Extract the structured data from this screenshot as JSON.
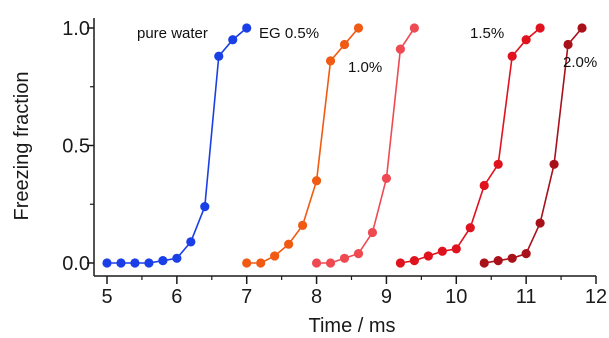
{
  "chart_data": {
    "type": "line",
    "title": "",
    "xlabel": "Time / ms",
    "ylabel": "Freezing fraction",
    "xlim": [
      5,
      12
    ],
    "ylim": [
      0,
      1
    ],
    "xticks": [
      5,
      6,
      7,
      8,
      9,
      10,
      11,
      12
    ],
    "yticks": [
      0.0,
      0.5,
      1.0
    ],
    "xtick_labels": [
      "5",
      "6",
      "7",
      "8",
      "9",
      "10",
      "11",
      "12"
    ],
    "ytick_labels": [
      "0.0",
      "0.5",
      "1.0"
    ],
    "grid": false,
    "legend": "none",
    "series": [
      {
        "name": "pure water",
        "color": "#1a3fe6",
        "x": [
          5.0,
          5.2,
          5.4,
          5.6,
          5.8,
          6.0,
          6.2,
          6.4,
          6.6,
          6.8,
          7.0
        ],
        "y": [
          0.0,
          0.0,
          0.0,
          0.0,
          0.01,
          0.02,
          0.09,
          0.24,
          0.88,
          0.95,
          1.0
        ]
      },
      {
        "name": "EG 0.5%",
        "color": "#f05a12",
        "x": [
          7.0,
          7.2,
          7.4,
          7.6,
          7.8,
          8.0,
          8.2,
          8.4,
          8.6
        ],
        "y": [
          0.0,
          0.0,
          0.03,
          0.08,
          0.16,
          0.35,
          0.86,
          0.93,
          1.0
        ]
      },
      {
        "name": "1.0%",
        "color": "#ef4a52",
        "x": [
          8.0,
          8.2,
          8.4,
          8.6,
          8.8,
          9.0,
          9.2,
          9.4
        ],
        "y": [
          0.0,
          0.0,
          0.02,
          0.04,
          0.13,
          0.36,
          0.91,
          1.0
        ]
      },
      {
        "name": "1.5%",
        "color": "#e0121e",
        "x": [
          9.2,
          9.4,
          9.6,
          9.8,
          10.0,
          10.2,
          10.4,
          10.6,
          10.8,
          11.0,
          11.2
        ],
        "y": [
          0.0,
          0.01,
          0.03,
          0.05,
          0.06,
          0.15,
          0.33,
          0.42,
          0.88,
          0.95,
          1.0
        ]
      },
      {
        "name": "2.0%",
        "color": "#a8101a",
        "x": [
          10.4,
          10.6,
          10.8,
          11.0,
          11.2,
          11.4,
          11.6,
          11.8
        ],
        "y": [
          0.0,
          0.01,
          0.02,
          0.04,
          0.17,
          0.42,
          0.93,
          1.0
        ]
      }
    ]
  }
}
